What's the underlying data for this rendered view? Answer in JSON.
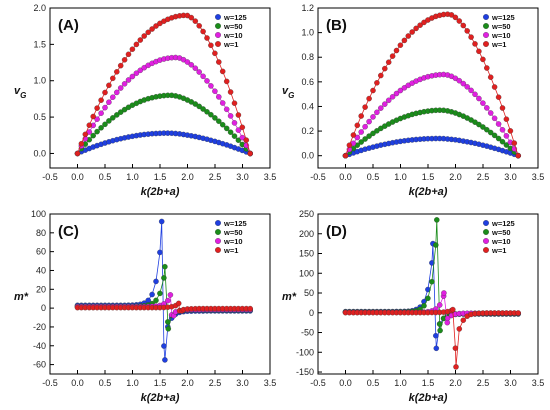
{
  "chart_data": [
    {
      "type": "scatter",
      "panel_label": "(A)",
      "xlabel": "k(2b+a)",
      "ylabel": "v_G",
      "xlim": [
        -0.5,
        3.5
      ],
      "ylim": [
        -0.2,
        2.0
      ],
      "xticks": [
        -0.5,
        0.0,
        0.5,
        1.0,
        1.5,
        2.0,
        2.5,
        3.0,
        3.5
      ],
      "yticks": [
        0.0,
        0.5,
        1.0,
        1.5,
        2.0
      ],
      "legend_position": "top-right",
      "series": [
        {
          "name": "w=125",
          "color": "#1f3fe0",
          "shape": "arch",
          "peak_x": 1.65,
          "peak_y": 0.28
        },
        {
          "name": "w=50",
          "color": "#1a8c1a",
          "shape": "arch",
          "peak_x": 1.7,
          "peak_y": 0.8
        },
        {
          "name": "w=10",
          "color": "#e020e0",
          "shape": "arch",
          "peak_x": 1.8,
          "peak_y": 1.32
        },
        {
          "name": "w=1",
          "color": "#e02020",
          "shape": "arch",
          "peak_x": 1.98,
          "peak_y": 1.9
        }
      ]
    },
    {
      "type": "scatter",
      "panel_label": "(B)",
      "xlabel": "k(2b+a)",
      "ylabel": "v_G",
      "xlim": [
        -0.5,
        3.5
      ],
      "ylim": [
        -0.1,
        1.2
      ],
      "xticks": [
        -0.5,
        0.0,
        0.5,
        1.0,
        1.5,
        2.0,
        2.5,
        3.0,
        3.5
      ],
      "yticks": [
        0.0,
        0.2,
        0.4,
        0.6,
        0.8,
        1.0,
        1.2
      ],
      "legend_position": "top-right",
      "series": [
        {
          "name": "w=125",
          "color": "#1f3fe0",
          "shape": "arch",
          "peak_x": 1.7,
          "peak_y": 0.14
        },
        {
          "name": "w=50",
          "color": "#1a8c1a",
          "shape": "arch",
          "peak_x": 1.75,
          "peak_y": 0.37
        },
        {
          "name": "w=10",
          "color": "#e020e0",
          "shape": "arch",
          "peak_x": 1.8,
          "peak_y": 0.66
        },
        {
          "name": "w=1",
          "color": "#e02020",
          "shape": "arch",
          "peak_x": 1.88,
          "peak_y": 1.15
        }
      ]
    },
    {
      "type": "scatter",
      "panel_label": "(C)",
      "xlabel": "k(2b+a)",
      "ylabel": "m*",
      "xlim": [
        -0.5,
        3.5
      ],
      "ylim": [
        -70,
        100
      ],
      "xticks": [
        -0.5,
        0.0,
        0.5,
        1.0,
        1.5,
        2.0,
        2.5,
        3.0,
        3.5
      ],
      "yticks": [
        -60,
        -40,
        -20,
        0,
        20,
        40,
        60,
        80,
        100
      ],
      "legend_position": "top-right",
      "series": [
        {
          "name": "w=125",
          "color": "#1f3fe0",
          "shape": "pole",
          "x0": 1.54,
          "base_left": 3,
          "base_right": -3,
          "spike_up": 92,
          "spike_down": -55
        },
        {
          "name": "w=50",
          "color": "#1a8c1a",
          "shape": "pole",
          "x0": 1.6,
          "base_left": 2,
          "base_right": -2,
          "spike_up": 44,
          "spike_down": -22
        },
        {
          "name": "w=10",
          "color": "#e020e0",
          "shape": "pole",
          "x0": 1.7,
          "base_left": 1.5,
          "base_right": -1.5,
          "spike_up": 14,
          "spike_down": -8
        },
        {
          "name": "w=1",
          "color": "#e02020",
          "shape": "pole",
          "x0": 1.85,
          "base_left": 0.5,
          "base_right": -0.5,
          "spike_up": 5,
          "spike_down": -3
        }
      ]
    },
    {
      "type": "scatter",
      "panel_label": "(D)",
      "xlabel": "k(2b+a)",
      "ylabel": "m*",
      "xlim": [
        -0.5,
        3.5
      ],
      "ylim": [
        -155,
        250
      ],
      "xticks": [
        -0.5,
        0.0,
        0.5,
        1.0,
        1.5,
        2.0,
        2.5,
        3.0,
        3.5
      ],
      "yticks": [
        -150,
        -100,
        -50,
        0,
        50,
        100,
        150,
        200,
        250
      ],
      "legend_position": "top-right",
      "series": [
        {
          "name": "w=125",
          "color": "#1f3fe0",
          "shape": "pole",
          "x0": 1.6,
          "base_left": 3,
          "base_right": -3,
          "spike_up": 175,
          "spike_down": -90
        },
        {
          "name": "w=50",
          "color": "#1a8c1a",
          "shape": "pole",
          "x0": 1.67,
          "base_left": 2,
          "base_right": -2,
          "spike_up": 235,
          "spike_down": -45
        },
        {
          "name": "w=10",
          "color": "#e020e0",
          "shape": "pole",
          "x0": 1.8,
          "base_left": 1,
          "base_right": -1,
          "spike_up": 50,
          "spike_down": -25
        },
        {
          "name": "w=1",
          "color": "#e02020",
          "shape": "pole",
          "x0": 1.96,
          "base_left": 0.5,
          "base_right": -0.5,
          "spike_up": 8,
          "spike_down": -137
        }
      ]
    }
  ]
}
